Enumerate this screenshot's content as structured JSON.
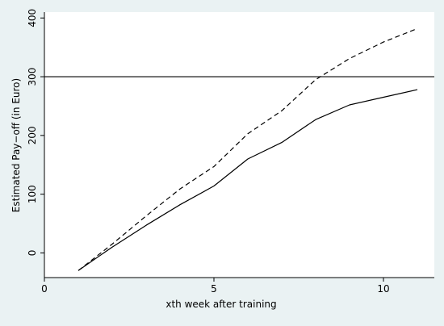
{
  "chart_data": {
    "type": "line",
    "title": "",
    "xlabel": "xth week after training",
    "ylabel": "Estimated Pay−off (in Euro)",
    "xlim": [
      0,
      11.5
    ],
    "ylim": [
      -42,
      410
    ],
    "xticks": [
      0,
      5,
      10
    ],
    "xtick_labels": [
      "0",
      "5",
      "10"
    ],
    "yticks": [
      0,
      100,
      200,
      300,
      400
    ],
    "ytick_labels": [
      "0",
      "100",
      "200",
      "300",
      "400"
    ],
    "grid": false,
    "legend": "none",
    "series": [
      {
        "style": "solid",
        "color": "#000000",
        "x": [
          1,
          2,
          3,
          4,
          5,
          6,
          7,
          8,
          9,
          10,
          11
        ],
        "y": [
          -30,
          10,
          47,
          82,
          114,
          160,
          188,
          227,
          252,
          265,
          278
        ]
      },
      {
        "style": "dashed",
        "color": "#000000",
        "x": [
          1,
          2,
          3,
          4,
          5,
          6,
          7,
          8,
          9,
          10,
          11
        ],
        "y": [
          -30,
          15,
          63,
          109,
          147,
          203,
          242,
          295,
          331,
          359,
          382
        ]
      }
    ],
    "reference_lines": [
      {
        "orientation": "horizontal",
        "y": 300,
        "color": "#000000"
      }
    ]
  }
}
